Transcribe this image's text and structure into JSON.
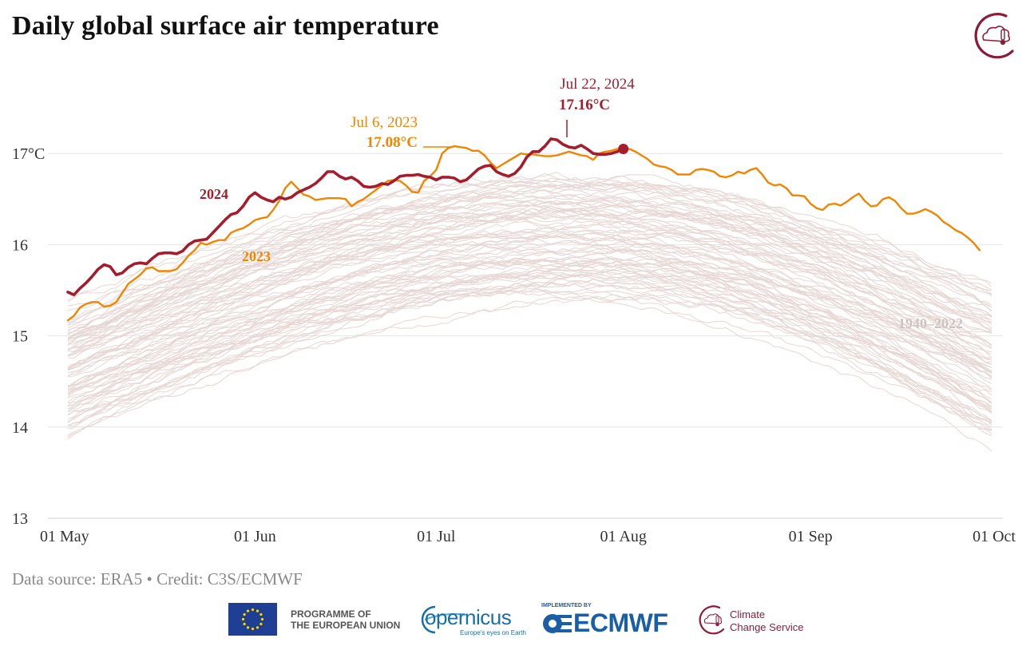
{
  "header": {
    "title": "Daily global surface air temperature"
  },
  "footer": {
    "credit": "Data source: ERA5 • Credit: C3S/ECMWF",
    "eu_line1": "PROGRAMME OF",
    "eu_line2": "THE EUROPEAN UNION",
    "copernicus_word": "opernicus",
    "copernicus_tagline": "Europe's eyes on Earth",
    "ecmwf_small": "IMPLEMENTED BY",
    "ecmwf_word": "ECMWF",
    "ccs_line1": "Climate",
    "ccs_line2": "Change Service"
  },
  "colors": {
    "y2024": "#a51d2d",
    "y2023": "#f28500",
    "historical": "#e6d6d3",
    "brand": "#8c1c3c",
    "grid": "#e4e4e4"
  },
  "chart_data": {
    "type": "line",
    "title": "Daily global surface air temperature",
    "xlabel": "",
    "ylabel": "",
    "x_unit": "day offset from 01 May",
    "xlim": [
      0,
      153
    ],
    "ylim": [
      13,
      17.9
    ],
    "grid": true,
    "x_ticks": [
      {
        "value": 0,
        "label": "01 May"
      },
      {
        "value": 31,
        "label": "01 Jun"
      },
      {
        "value": 61,
        "label": "01 Jul"
      },
      {
        "value": 92,
        "label": "01 Aug"
      },
      {
        "value": 123,
        "label": "01 Sep"
      },
      {
        "value": 153,
        "label": "01 Oct"
      }
    ],
    "y_ticks": [
      {
        "value": 13,
        "label": "13"
      },
      {
        "value": 14,
        "label": "14"
      },
      {
        "value": 15,
        "label": "15"
      },
      {
        "value": 16,
        "label": "16"
      },
      {
        "value": 17,
        "label": "17°C"
      }
    ],
    "series": [
      {
        "name": "2024",
        "label": "2024",
        "points": [
          [
            0,
            15.48
          ],
          [
            1,
            15.45
          ],
          [
            2,
            15.52
          ],
          [
            3,
            15.58
          ],
          [
            4,
            15.65
          ],
          [
            5,
            15.73
          ],
          [
            6,
            15.78
          ],
          [
            7,
            15.76
          ],
          [
            8,
            15.67
          ],
          [
            9,
            15.69
          ],
          [
            10,
            15.75
          ],
          [
            11,
            15.79
          ],
          [
            12,
            15.8
          ],
          [
            13,
            15.79
          ],
          [
            14,
            15.85
          ],
          [
            15,
            15.9
          ],
          [
            16,
            15.91
          ],
          [
            17,
            15.91
          ],
          [
            18,
            15.9
          ],
          [
            19,
            15.93
          ],
          [
            20,
            16.0
          ],
          [
            21,
            16.04
          ],
          [
            22,
            16.05
          ],
          [
            23,
            16.06
          ],
          [
            24,
            16.13
          ],
          [
            25,
            16.2
          ],
          [
            26,
            16.27
          ],
          [
            27,
            16.33
          ],
          [
            28,
            16.35
          ],
          [
            29,
            16.42
          ],
          [
            30,
            16.52
          ],
          [
            31,
            16.57
          ],
          [
            32,
            16.52
          ],
          [
            33,
            16.49
          ],
          [
            34,
            16.47
          ],
          [
            35,
            16.52
          ],
          [
            36,
            16.5
          ],
          [
            37,
            16.52
          ],
          [
            38,
            16.57
          ],
          [
            39,
            16.6
          ],
          [
            40,
            16.63
          ],
          [
            41,
            16.67
          ],
          [
            42,
            16.73
          ],
          [
            43,
            16.8
          ],
          [
            44,
            16.8
          ],
          [
            45,
            16.75
          ],
          [
            46,
            16.72
          ],
          [
            47,
            16.74
          ],
          [
            48,
            16.7
          ],
          [
            49,
            16.64
          ],
          [
            50,
            16.63
          ],
          [
            51,
            16.64
          ],
          [
            52,
            16.67
          ],
          [
            53,
            16.66
          ],
          [
            54,
            16.7
          ],
          [
            55,
            16.75
          ],
          [
            56,
            16.76
          ],
          [
            57,
            16.76
          ],
          [
            58,
            16.77
          ],
          [
            59,
            16.75
          ],
          [
            60,
            16.74
          ],
          [
            61,
            16.71
          ],
          [
            62,
            16.74
          ],
          [
            63,
            16.74
          ],
          [
            64,
            16.73
          ],
          [
            65,
            16.69
          ],
          [
            66,
            16.71
          ],
          [
            67,
            16.77
          ],
          [
            68,
            16.83
          ],
          [
            69,
            16.86
          ],
          [
            70,
            16.87
          ],
          [
            71,
            16.8
          ],
          [
            72,
            16.77
          ],
          [
            73,
            16.75
          ],
          [
            74,
            16.78
          ],
          [
            75,
            16.85
          ],
          [
            76,
            16.96
          ],
          [
            77,
            17.02
          ],
          [
            78,
            17.02
          ],
          [
            79,
            17.08
          ],
          [
            80,
            17.16
          ],
          [
            81,
            17.15
          ],
          [
            82,
            17.1
          ],
          [
            83,
            17.07
          ],
          [
            84,
            17.06
          ],
          [
            85,
            17.09
          ],
          [
            86,
            17.05
          ],
          [
            87,
            17.0
          ],
          [
            88,
            16.99
          ],
          [
            89,
            16.99
          ],
          [
            90,
            17.0
          ],
          [
            91,
            17.02
          ],
          [
            92,
            17.05
          ]
        ]
      },
      {
        "name": "2023",
        "label": "2023",
        "points": [
          [
            0,
            15.17
          ],
          [
            1,
            15.22
          ],
          [
            2,
            15.31
          ],
          [
            3,
            15.35
          ],
          [
            4,
            15.37
          ],
          [
            5,
            15.37
          ],
          [
            6,
            15.32
          ],
          [
            7,
            15.33
          ],
          [
            8,
            15.37
          ],
          [
            9,
            15.47
          ],
          [
            10,
            15.57
          ],
          [
            11,
            15.62
          ],
          [
            12,
            15.67
          ],
          [
            13,
            15.74
          ],
          [
            14,
            15.75
          ],
          [
            15,
            15.71
          ],
          [
            16,
            15.71
          ],
          [
            17,
            15.71
          ],
          [
            18,
            15.73
          ],
          [
            19,
            15.8
          ],
          [
            20,
            15.88
          ],
          [
            21,
            15.94
          ],
          [
            22,
            16.02
          ],
          [
            23,
            16.0
          ],
          [
            24,
            16.03
          ],
          [
            25,
            16.05
          ],
          [
            26,
            16.05
          ],
          [
            27,
            16.13
          ],
          [
            28,
            16.16
          ],
          [
            29,
            16.18
          ],
          [
            30,
            16.22
          ],
          [
            31,
            16.27
          ],
          [
            32,
            16.29
          ],
          [
            33,
            16.3
          ],
          [
            34,
            16.38
          ],
          [
            35,
            16.48
          ],
          [
            36,
            16.62
          ],
          [
            37,
            16.69
          ],
          [
            38,
            16.62
          ],
          [
            39,
            16.55
          ],
          [
            40,
            16.53
          ],
          [
            41,
            16.49
          ],
          [
            42,
            16.5
          ],
          [
            43,
            16.51
          ],
          [
            44,
            16.51
          ],
          [
            45,
            16.51
          ],
          [
            46,
            16.5
          ],
          [
            47,
            16.42
          ],
          [
            48,
            16.47
          ],
          [
            49,
            16.5
          ],
          [
            50,
            16.55
          ],
          [
            51,
            16.6
          ],
          [
            52,
            16.65
          ],
          [
            53,
            16.7
          ],
          [
            54,
            16.71
          ],
          [
            55,
            16.7
          ],
          [
            56,
            16.65
          ],
          [
            57,
            16.58
          ],
          [
            58,
            16.57
          ],
          [
            59,
            16.7
          ],
          [
            60,
            16.75
          ],
          [
            61,
            16.82
          ],
          [
            62,
            17.0
          ],
          [
            63,
            17.06
          ],
          [
            64,
            17.08
          ],
          [
            65,
            17.07
          ],
          [
            66,
            17.06
          ],
          [
            67,
            17.03
          ],
          [
            68,
            17.03
          ],
          [
            69,
            16.98
          ],
          [
            70,
            16.9
          ],
          [
            71,
            16.84
          ],
          [
            72,
            16.88
          ],
          [
            73,
            16.92
          ],
          [
            74,
            16.96
          ],
          [
            75,
            17.0
          ],
          [
            76,
            16.99
          ],
          [
            77,
            16.99
          ],
          [
            78,
            16.98
          ],
          [
            79,
            16.97
          ],
          [
            80,
            16.97
          ],
          [
            81,
            16.98
          ],
          [
            82,
            17.0
          ],
          [
            83,
            17.02
          ],
          [
            84,
            17.0
          ],
          [
            85,
            16.98
          ],
          [
            86,
            16.97
          ],
          [
            87,
            16.93
          ],
          [
            88,
            17.0
          ],
          [
            89,
            17.02
          ],
          [
            90,
            17.03
          ],
          [
            91,
            17.05
          ],
          [
            92,
            17.06
          ],
          [
            93,
            17.05
          ],
          [
            94,
            17.02
          ],
          [
            95,
            16.98
          ],
          [
            96,
            16.94
          ],
          [
            97,
            16.88
          ],
          [
            98,
            16.86
          ],
          [
            99,
            16.85
          ],
          [
            100,
            16.82
          ],
          [
            101,
            16.77
          ],
          [
            102,
            16.77
          ],
          [
            103,
            16.77
          ],
          [
            104,
            16.82
          ],
          [
            105,
            16.83
          ],
          [
            106,
            16.82
          ],
          [
            107,
            16.8
          ],
          [
            108,
            16.75
          ],
          [
            109,
            16.74
          ],
          [
            110,
            16.76
          ],
          [
            111,
            16.8
          ],
          [
            112,
            16.78
          ],
          [
            113,
            16.82
          ],
          [
            114,
            16.84
          ],
          [
            115,
            16.77
          ],
          [
            116,
            16.68
          ],
          [
            117,
            16.65
          ],
          [
            118,
            16.66
          ],
          [
            119,
            16.62
          ],
          [
            120,
            16.54
          ],
          [
            121,
            16.54
          ],
          [
            122,
            16.53
          ],
          [
            123,
            16.45
          ],
          [
            124,
            16.4
          ],
          [
            125,
            16.38
          ],
          [
            126,
            16.44
          ],
          [
            127,
            16.45
          ],
          [
            128,
            16.43
          ],
          [
            129,
            16.47
          ],
          [
            130,
            16.52
          ],
          [
            131,
            16.56
          ],
          [
            132,
            16.48
          ],
          [
            133,
            16.42
          ],
          [
            134,
            16.43
          ],
          [
            135,
            16.5
          ],
          [
            136,
            16.52
          ],
          [
            137,
            16.48
          ],
          [
            138,
            16.4
          ],
          [
            139,
            16.34
          ],
          [
            140,
            16.34
          ],
          [
            141,
            16.36
          ],
          [
            142,
            16.39
          ],
          [
            143,
            16.36
          ],
          [
            144,
            16.32
          ],
          [
            145,
            16.25
          ],
          [
            146,
            16.21
          ],
          [
            147,
            16.16
          ],
          [
            148,
            16.13
          ],
          [
            149,
            16.08
          ],
          [
            150,
            16.02
          ],
          [
            151,
            15.94
          ]
        ]
      }
    ],
    "historical": {
      "name": "1940–2022",
      "label": "1940–2022",
      "years": [
        1940,
        1941,
        1942,
        1943,
        1944,
        1945,
        1946,
        1947,
        1948,
        1949,
        1950,
        1951,
        1952,
        1953,
        1954,
        1955,
        1956,
        1957,
        1958,
        1959,
        1960,
        1961,
        1962,
        1963,
        1964,
        1965,
        1966,
        1967,
        1968,
        1969,
        1970,
        1971,
        1972,
        1973,
        1974,
        1975,
        1976,
        1977,
        1978,
        1979,
        1980,
        1981,
        1982,
        1983,
        1984,
        1985,
        1986,
        1987,
        1988,
        1989,
        1990,
        1991,
        1992,
        1993,
        1994,
        1995,
        1996,
        1997,
        1998,
        1999,
        2000,
        2001,
        2002,
        2003,
        2004,
        2005,
        2006,
        2007,
        2008,
        2009,
        2010,
        2011,
        2012,
        2013,
        2014,
        2015,
        2016,
        2017,
        2018,
        2019,
        2020,
        2021,
        2022
      ],
      "start_temp_range": [
        13.95,
        15.3
      ],
      "peak_temp_range": [
        15.45,
        16.75
      ],
      "end_temp_range": [
        13.9,
        15.45
      ],
      "peak_day_range": [
        75,
        95
      ]
    },
    "annotations": [
      {
        "series": "2024",
        "date": "Jul 22, 2024",
        "value": "17.16°C",
        "x": 80,
        "y": 17.16
      },
      {
        "series": "2023",
        "date": "Jul 6, 2023",
        "value": "17.08°C",
        "x": 64,
        "y": 17.08
      }
    ],
    "endpoint_marker": {
      "series": "2024",
      "x": 92,
      "y": 17.05
    }
  }
}
